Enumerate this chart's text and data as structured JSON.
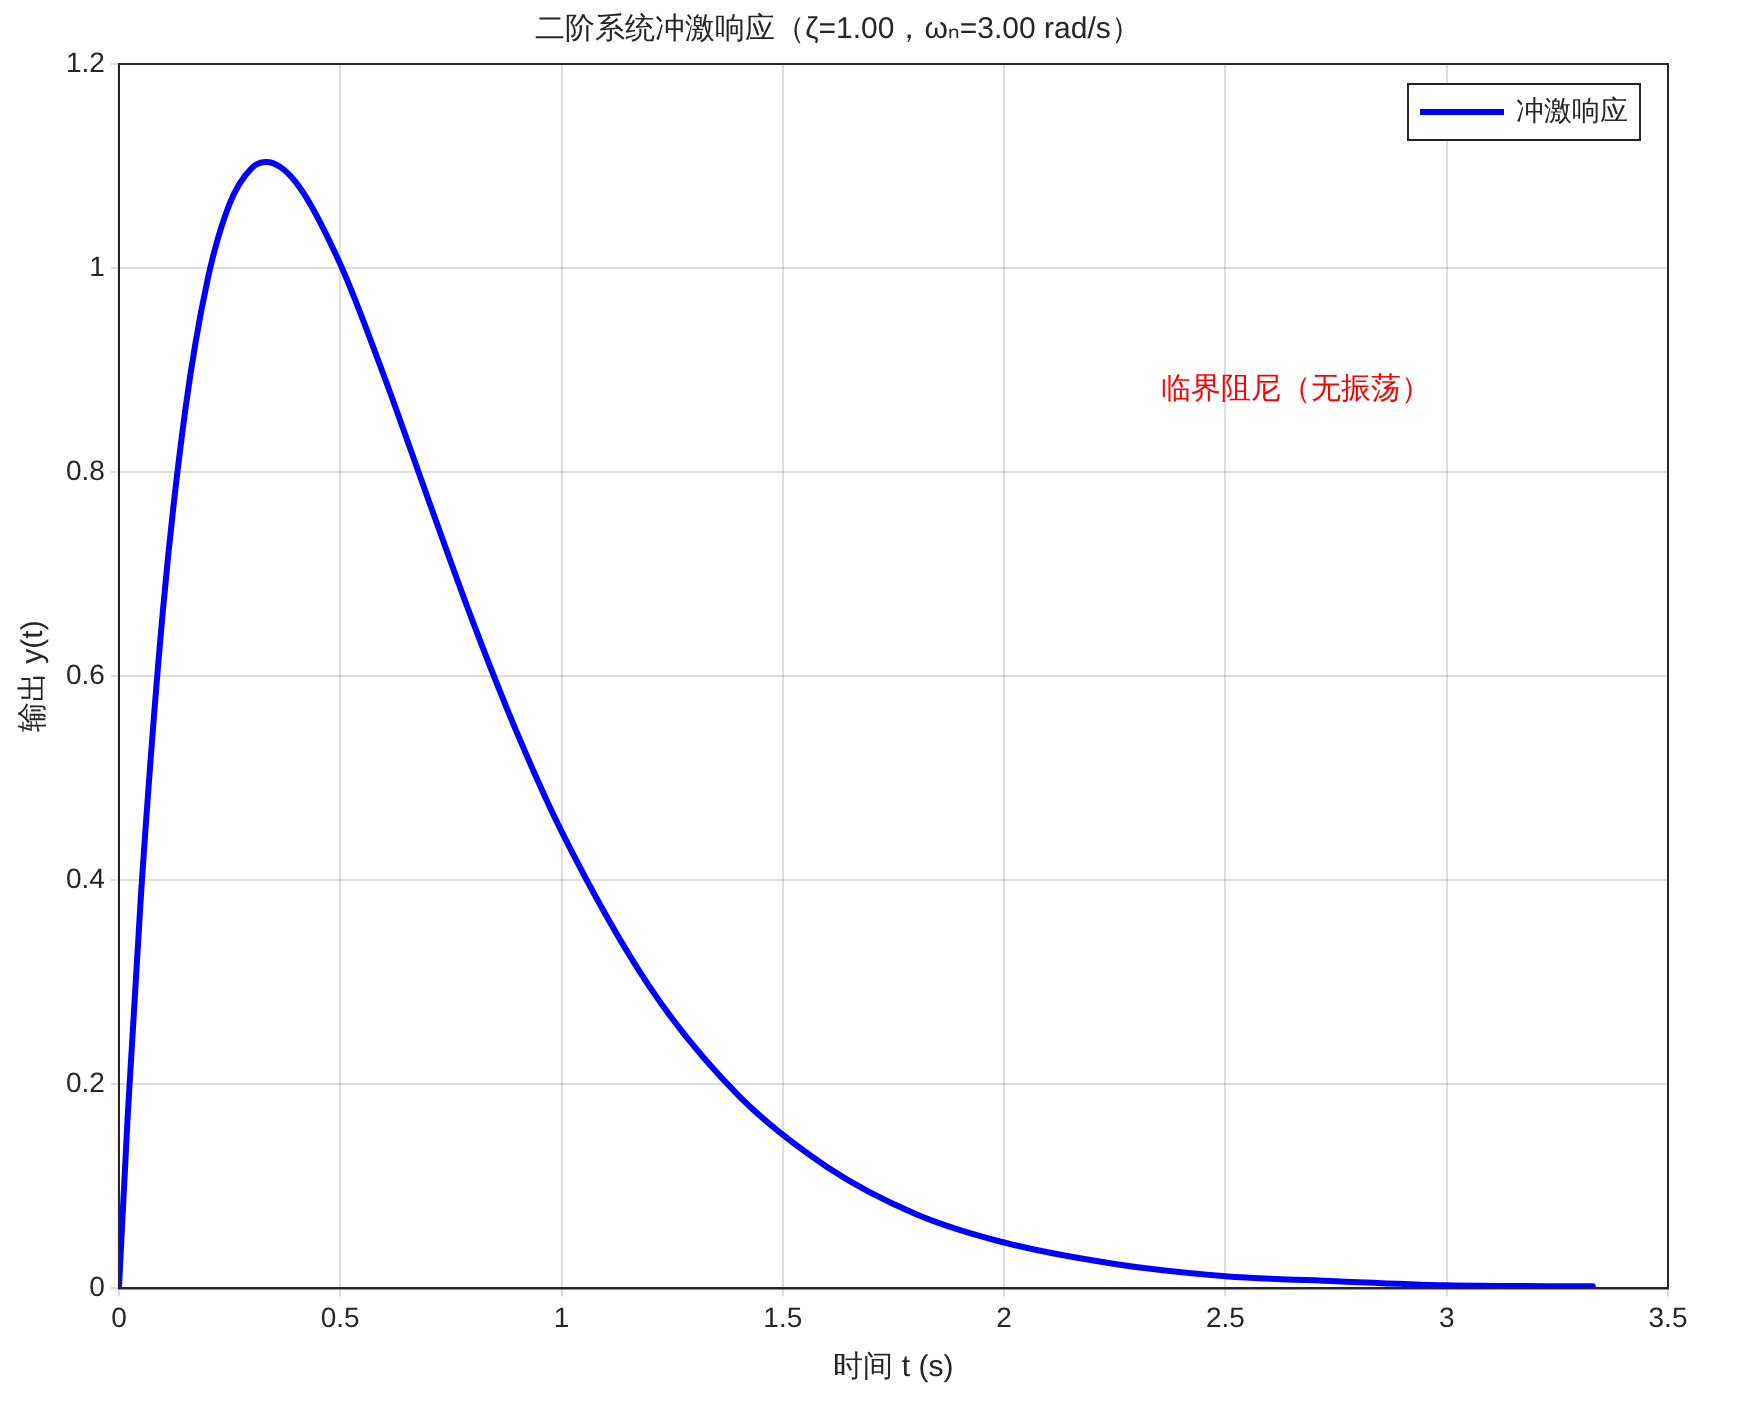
{
  "chart_data": {
    "type": "line",
    "title": "二阶系统冲激响应（ζ=1.00，ωₙ=3.00 rad/s）",
    "xlabel": "时间 t (s)",
    "ylabel": "输出 y(t)",
    "series": [
      {
        "name": "冲激响应",
        "color": "#0000ff",
        "x": [
          0,
          0.02,
          0.05,
          0.1,
          0.15,
          0.2,
          0.25,
          0.3,
          0.333,
          0.4,
          0.5,
          0.6,
          0.7,
          0.8,
          0.9,
          1.0,
          1.2,
          1.4,
          1.6,
          1.8,
          2.0,
          2.25,
          2.5,
          2.75,
          3.0,
          3.33
        ],
        "values": [
          0,
          0.17,
          0.387,
          0.667,
          0.861,
          0.988,
          1.063,
          1.098,
          1.104,
          1.084,
          1.004,
          0.893,
          0.772,
          0.653,
          0.544,
          0.448,
          0.295,
          0.189,
          0.119,
          0.073,
          0.045,
          0.024,
          0.012,
          0.007,
          0.003,
          0.002
        ]
      }
    ],
    "annotations": [
      "临界阻尼（无振荡）"
    ],
    "xlim": [
      0,
      3.5
    ],
    "xticks": [
      0,
      0.5,
      1,
      1.5,
      2,
      2.5,
      3,
      3.5
    ],
    "ylim": [
      0,
      1.2
    ],
    "yticks": [
      0,
      0.2,
      0.4,
      0.6,
      0.8,
      1,
      1.2
    ],
    "grid": true,
    "legend": "top right",
    "marker": "none",
    "line_style": "solid"
  }
}
